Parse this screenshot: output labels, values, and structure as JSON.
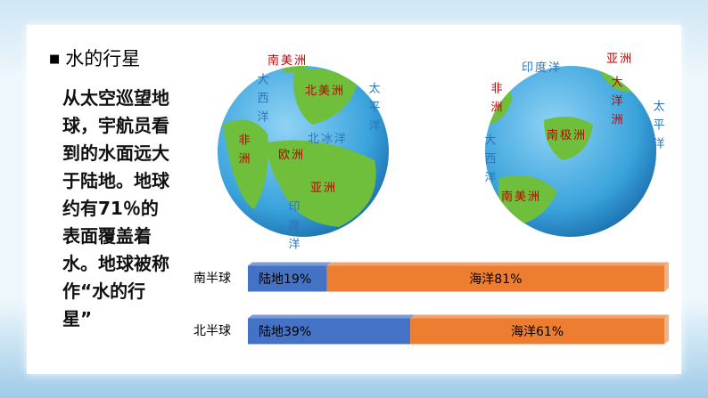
{
  "heading": "水的行星",
  "body": "从太空巡望地球，宇航员看到的水面远大于陆地。地球约有71％的表面覆盖着水。地球被称作“水的行星”",
  "globes": [
    {
      "labels": [
        "南美洲",
        "大西洋",
        "北美洲",
        "太平洋",
        "非洲",
        "欧洲",
        "北冰洋",
        "亚洲",
        "印度洋"
      ]
    },
    {
      "labels": [
        "印度洋",
        "亚洲",
        "大洋洲",
        "南极洲",
        "太平洋",
        "大西洋",
        "非洲",
        "南美洲"
      ]
    }
  ],
  "chart_data": {
    "type": "stacked-bar-horizontal",
    "categories": [
      "南半球",
      "北半球"
    ],
    "xlim": [
      0,
      100
    ],
    "series": [
      {
        "color": "#4472c4",
        "values": [
          19,
          39
        ],
        "value_labels": [
          "陆地19%",
          "陆地39%"
        ]
      },
      {
        "color": "#ed7d31",
        "values": [
          81,
          61
        ],
        "value_labels": [
          "海洋81%",
          "海洋61%"
        ]
      }
    ]
  }
}
